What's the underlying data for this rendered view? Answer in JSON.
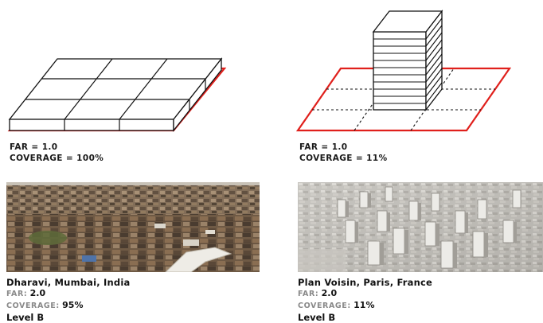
{
  "left": {
    "diagram_caption": {
      "far": "FAR = 1.0",
      "coverage": "COVERAGE = 100%"
    },
    "example": {
      "place": "Dharavi, Mumbai, India",
      "far_key": "FAR:",
      "far_value": "2.0",
      "coverage_key": "COVERAGE:",
      "coverage_value": "95%",
      "level": "Level B"
    }
  },
  "right": {
    "diagram_caption": {
      "far": "FAR = 1.0",
      "coverage": "COVERAGE = 11%"
    },
    "example": {
      "place": "Plan Voisin, Paris, France",
      "far_key": "FAR:",
      "far_value": "2.0",
      "coverage_key": "COVERAGE:",
      "coverage_value": "11%",
      "level": "Level B"
    }
  },
  "colors": {
    "site_outline": "#e0201c",
    "line": "#111111"
  }
}
